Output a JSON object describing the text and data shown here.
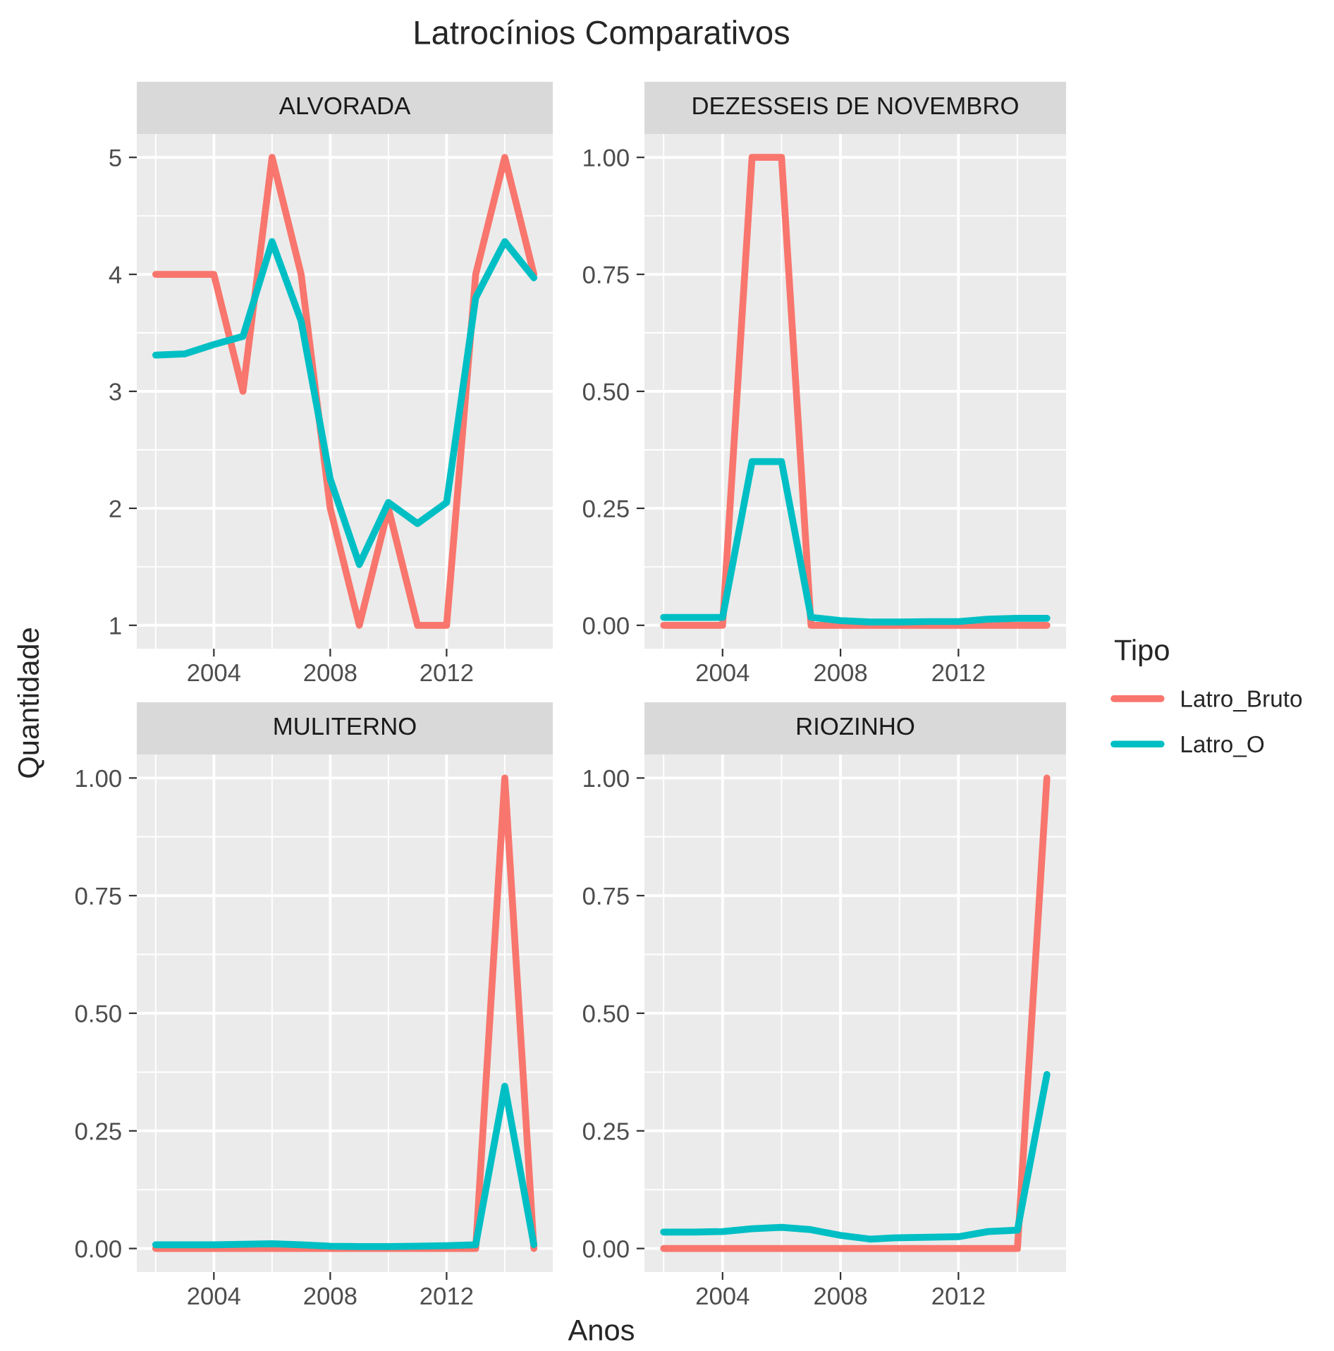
{
  "chart_data": [
    {
      "type": "line",
      "title": "ALVORADA",
      "annotations": [
        "Latrocínios Comparativos"
      ],
      "ylabel": "Quantidade",
      "legend": "right",
      "legend_title": "Tipo",
      "x": [
        2002,
        2003,
        2004,
        2005,
        2006,
        2007,
        2008,
        2009,
        2010,
        2011,
        2012,
        2013,
        2014,
        2015
      ],
      "series": [
        {
          "name": "Latro_Bruto",
          "color": "#f8766d",
          "values": [
            4,
            4,
            4,
            3,
            5,
            4,
            2,
            1,
            2,
            1,
            1,
            4,
            5,
            4
          ]
        },
        {
          "name": "Latro_O",
          "color": "#00bfc4",
          "values": [
            3.31,
            3.32,
            3.4,
            3.47,
            4.28,
            3.6,
            2.25,
            1.52,
            2.05,
            1.87,
            2.05,
            3.8,
            4.28,
            3.97
          ]
        }
      ],
      "xlim": [
        2001.35,
        2015.65
      ],
      "xticks": [
        2004,
        2008,
        2012
      ],
      "ylim": [
        0.8,
        5.2
      ],
      "yticks": [
        1,
        2,
        3,
        4,
        5
      ],
      "grid": true
    },
    {
      "type": "line",
      "title": "DEZESSEIS DE NOVEMBRO",
      "x": [
        2002,
        2003,
        2004,
        2005,
        2006,
        2007,
        2008,
        2009,
        2010,
        2011,
        2012,
        2013,
        2014,
        2015
      ],
      "series": [
        {
          "color": "#f8766d",
          "values": [
            0,
            0,
            0,
            1,
            1,
            0,
            0,
            0,
            0,
            0,
            0,
            0,
            0,
            0
          ]
        },
        {
          "color": "#00bfc4",
          "values": [
            0.017,
            0.017,
            0.017,
            0.35,
            0.35,
            0.017,
            0.01,
            0.007,
            0.007,
            0.008,
            0.008,
            0.013,
            0.015,
            0.015
          ]
        }
      ],
      "xlim": [
        2001.35,
        2015.65
      ],
      "xticks": [
        2004,
        2008,
        2012
      ],
      "ylim": [
        -0.05,
        1.05
      ],
      "yticks": [
        {
          "value": 0,
          "label": "0.00"
        },
        {
          "value": 0.25,
          "label": "0.25"
        },
        {
          "value": 0.5,
          "label": "0.50"
        },
        {
          "value": 0.75,
          "label": "0.75"
        },
        {
          "value": 1,
          "label": "1.00"
        }
      ],
      "grid": true
    },
    {
      "type": "line",
      "title": "MULITERNO",
      "xlabel": "Anos",
      "x": [
        2002,
        2003,
        2004,
        2005,
        2006,
        2007,
        2008,
        2009,
        2010,
        2011,
        2012,
        2013,
        2014,
        2015
      ],
      "series": [
        {
          "color": "#f8766d",
          "values": [
            0,
            0,
            0,
            0,
            0,
            0,
            0,
            0,
            0,
            0,
            0,
            0,
            1,
            0
          ]
        },
        {
          "color": "#00bfc4",
          "values": [
            0.008,
            0.008,
            0.008,
            0.009,
            0.01,
            0.008,
            0.005,
            0.004,
            0.004,
            0.005,
            0.006,
            0.008,
            0.345,
            0.008
          ]
        }
      ],
      "xlim": [
        2001.35,
        2015.65
      ],
      "xticks": [
        2004,
        2008,
        2012
      ],
      "ylim": [
        -0.05,
        1.05
      ],
      "yticks": [
        {
          "value": 0,
          "label": "0.00"
        },
        {
          "value": 0.25,
          "label": "0.25"
        },
        {
          "value": 0.5,
          "label": "0.50"
        },
        {
          "value": 0.75,
          "label": "0.75"
        },
        {
          "value": 1,
          "label": "1.00"
        }
      ],
      "grid": true
    },
    {
      "type": "line",
      "title": "RIOZINHO",
      "x": [
        2002,
        2003,
        2004,
        2005,
        2006,
        2007,
        2008,
        2009,
        2010,
        2011,
        2012,
        2013,
        2014,
        2015
      ],
      "series": [
        {
          "color": "#f8766d",
          "values": [
            0,
            0,
            0,
            0,
            0,
            0,
            0,
            0,
            0,
            0,
            0,
            0,
            0,
            1
          ]
        },
        {
          "color": "#00bfc4",
          "values": [
            0.035,
            0.035,
            0.036,
            0.042,
            0.045,
            0.04,
            0.028,
            0.02,
            0.023,
            0.024,
            0.025,
            0.036,
            0.039,
            0.37
          ]
        }
      ],
      "xlim": [
        2001.35,
        2015.65
      ],
      "xticks": [
        2004,
        2008,
        2012
      ],
      "ylim": [
        -0.05,
        1.05
      ],
      "yticks": [
        {
          "value": 0,
          "label": "0.00"
        },
        {
          "value": 0.25,
          "label": "0.25"
        },
        {
          "value": 0.5,
          "label": "0.50"
        },
        {
          "value": 0.75,
          "label": "0.75"
        },
        {
          "value": 1,
          "label": "1.00"
        }
      ],
      "grid": true
    }
  ]
}
